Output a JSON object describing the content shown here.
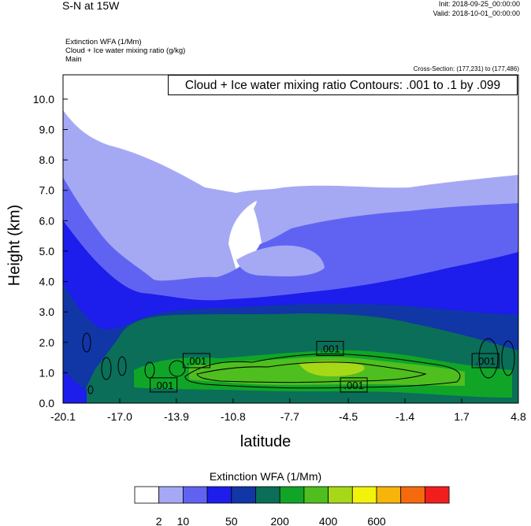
{
  "header": {
    "title": "S-N at 15W",
    "init": "Init: 2018-09-25_00:00:00",
    "valid": "Valid: 2018-10-01_00:00:00",
    "fields": [
      "Extinction WFA   (1/Mm)",
      "Cloud + Ice water mixing ratio   (g/kg)",
      "Main"
    ],
    "cross_section": "Cross-Section: (177,231) to (177,486)",
    "contour_info": "Cloud + Ice water mixing ratio Contours: .001 to .1 by .099"
  },
  "colorbar": {
    "title": "Extinction WFA  (1/Mm)",
    "colors": [
      "#ffffff",
      "#a5a9f4",
      "#6063f2",
      "#1d1dec",
      "#1136a6",
      "#0a6e58",
      "#10a527",
      "#4fbe1f",
      "#a7d817",
      "#f2f20a",
      "#f7b40a",
      "#f56a0c",
      "#f21e1e"
    ],
    "tick_labels": [
      {
        "after_box": 1,
        "label": "2"
      },
      {
        "after_box": 2,
        "label": "10"
      },
      {
        "after_box": 4,
        "label": "50"
      },
      {
        "after_box": 6,
        "label": "200"
      },
      {
        "after_box": 8,
        "label": "400"
      },
      {
        "after_box": 10,
        "label": "600"
      }
    ]
  },
  "chart_data": {
    "type": "heatmap",
    "xlabel": "latitude",
    "ylabel": "Height (km)",
    "x_ticks": [
      "-20.1",
      "-17.0",
      "-13.9",
      "-10.8",
      "-7.7",
      "-4.5",
      "-1.4",
      "1.7",
      "4.8"
    ],
    "y_ticks": [
      "0.0",
      "1.0",
      "2.0",
      "3.0",
      "4.0",
      "5.0",
      "6.0",
      "7.0",
      "8.0",
      "9.0",
      "10.0"
    ],
    "xlim": [
      -20.1,
      4.8
    ],
    "ylim": [
      0,
      10.8
    ],
    "contour_labels": [
      {
        "label": ".001",
        "lat": -12.8,
        "height": 1.4
      },
      {
        "label": ".001",
        "lat": -14.6,
        "height": 0.6
      },
      {
        "label": ".001",
        "lat": -5.5,
        "height": 1.8
      },
      {
        "label": ".001",
        "lat": -4.2,
        "height": 0.6
      },
      {
        "label": ".001",
        "lat": 3.0,
        "height": 1.4
      }
    ]
  }
}
